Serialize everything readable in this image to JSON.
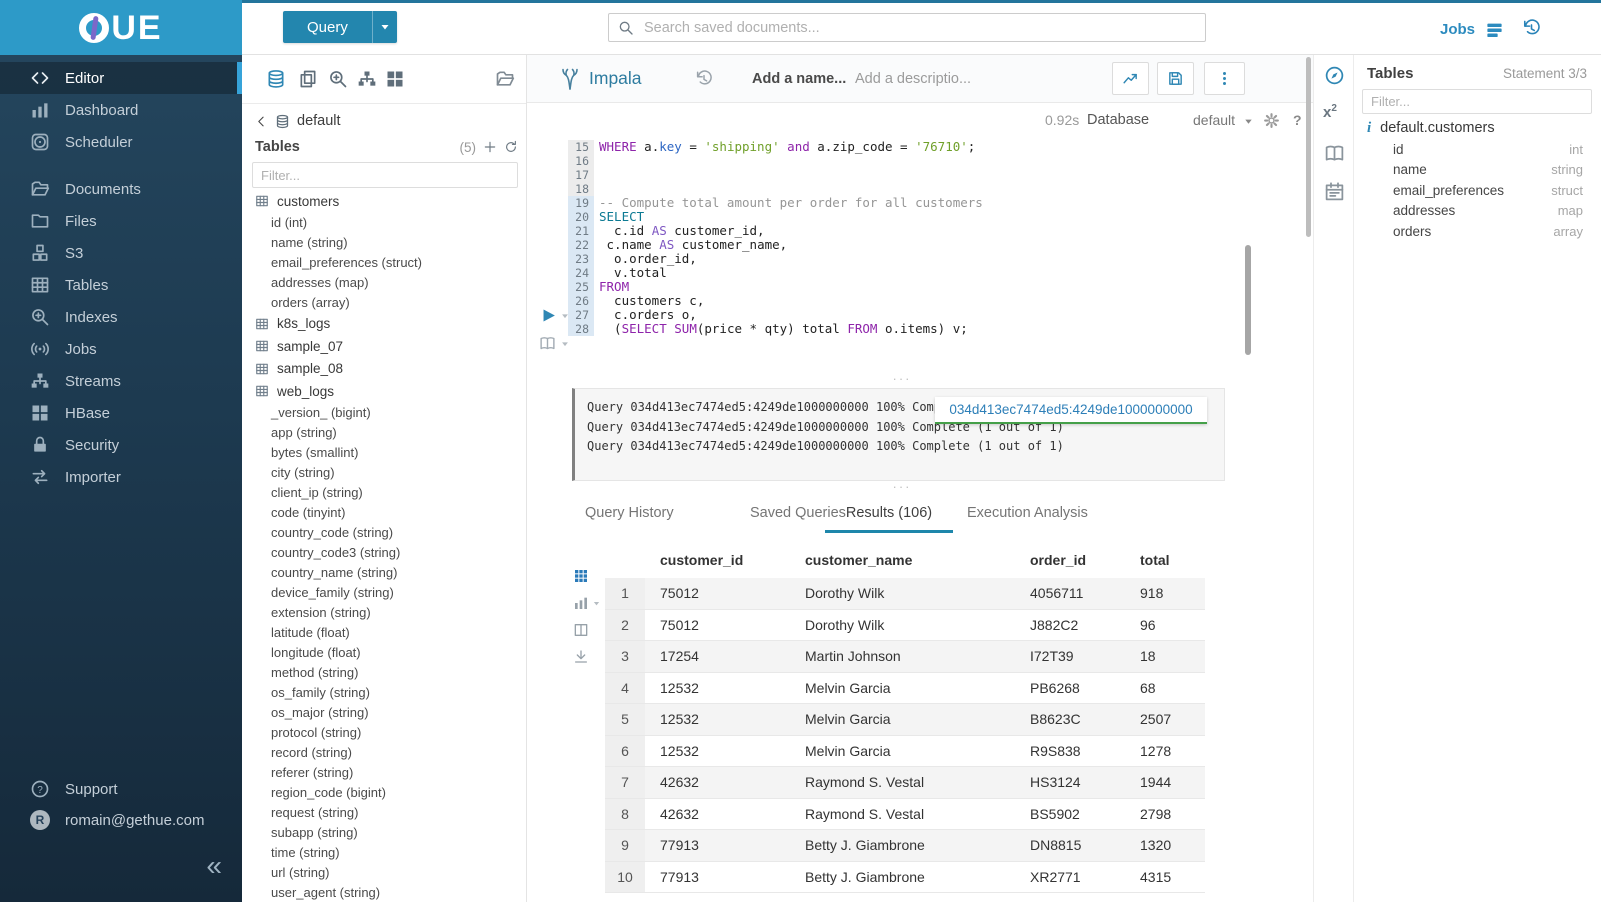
{
  "colors": {
    "accent_blue": "#2f87b4",
    "primary_button": "#2386ae",
    "logo_bar": "#2d9ac8",
    "sidebar_dark": "#1d3a50",
    "tab_active_underline": "#1e87ab",
    "tooltip_underline": "#45a049",
    "sql_keyword": "#8e24aa",
    "sql_string": "#70a02a"
  },
  "icons_legend": [
    "hue-logo-mark-icon",
    "caret-down-icon",
    "search-icon",
    "jobs-list-icon",
    "history-icon",
    "code-icon",
    "chart-bars-icon",
    "scheduler-icon",
    "folder-open-icon",
    "folder-icon",
    "cubes-icon",
    "table-icon",
    "search-plus-icon",
    "broadcast-icon",
    "sitemap-icon",
    "grid-icon",
    "lock-icon",
    "swap-icon",
    "question-icon",
    "database-icon",
    "copy-icon",
    "chevron-left-icon",
    "plus-icon",
    "refresh-icon",
    "impala-icon",
    "chart-line-icon",
    "save-icon",
    "kebab-icon",
    "gear-icon",
    "play-icon",
    "book-icon",
    "download-icon",
    "columns-icon",
    "grid-small-icon",
    "compass-icon",
    "superscript-icon",
    "calendar-icon",
    "info-icon",
    "collapse-icon"
  ],
  "topbar": {
    "query_button": "Query",
    "search_placeholder": "Search saved documents...",
    "jobs_label": "Jobs"
  },
  "sidebar": {
    "logo_brand": "HUE",
    "logo_letters": "UE",
    "items": [
      {
        "id": "editor",
        "label": "Editor",
        "icon": "code",
        "active": true
      },
      {
        "id": "dashboard",
        "label": "Dashboard",
        "icon": "chart-bars"
      },
      {
        "id": "scheduler",
        "label": "Scheduler",
        "icon": "scheduler",
        "gap_after": true
      },
      {
        "id": "documents",
        "label": "Documents",
        "icon": "folder-open"
      },
      {
        "id": "files",
        "label": "Files",
        "icon": "folder"
      },
      {
        "id": "s3",
        "label": "S3",
        "icon": "cubes"
      },
      {
        "id": "tables",
        "label": "Tables",
        "icon": "table"
      },
      {
        "id": "indexes",
        "label": "Indexes",
        "icon": "search-plus"
      },
      {
        "id": "jobs",
        "label": "Jobs",
        "icon": "broadcast"
      },
      {
        "id": "streams",
        "label": "Streams",
        "icon": "sitemap"
      },
      {
        "id": "hbase",
        "label": "HBase",
        "icon": "grid"
      },
      {
        "id": "security",
        "label": "Security",
        "icon": "lock"
      },
      {
        "id": "importer",
        "label": "Importer",
        "icon": "swap"
      }
    ],
    "support_label": "Support",
    "user_initial": "R",
    "user_email": "romain@gethue.com",
    "collapse_glyph": "«"
  },
  "left_assist": {
    "breadcrumb_db": "default",
    "tables_label": "Tables",
    "tables_count": "(5)",
    "filter_placeholder": "Filter...",
    "tree": [
      {
        "table": "customers",
        "columns": [
          "id (int)",
          "name (string)",
          "email_preferences (struct)",
          "addresses (map)",
          "orders (array)"
        ]
      },
      {
        "table": "k8s_logs",
        "columns": []
      },
      {
        "table": "sample_07",
        "columns": []
      },
      {
        "table": "sample_08",
        "columns": []
      },
      {
        "table": "web_logs",
        "columns": [
          "_version_ (bigint)",
          "app (string)",
          "bytes (smallint)",
          "city (string)",
          "client_ip (string)",
          "code (tinyint)",
          "country_code (string)",
          "country_code3 (string)",
          "country_name (string)",
          "device_family (string)",
          "extension (string)",
          "latitude (float)",
          "longitude (float)",
          "method (string)",
          "os_family (string)",
          "os_major (string)",
          "protocol (string)",
          "record (string)",
          "referer (string)",
          "region_code (bigint)",
          "request (string)",
          "subapp (string)",
          "time (string)",
          "url (string)",
          "user_agent (string)"
        ]
      }
    ]
  },
  "editor": {
    "engine": "Impala",
    "name_placeholder": "Add a name...",
    "description_placeholder": "Add a descriptio...",
    "exec_time": "0.92s",
    "database_label": "Database",
    "database_value": "default",
    "help_glyph": "?",
    "code": [
      {
        "n": 15,
        "hl": false,
        "tokens": [
          [
            "kw",
            "WHERE"
          ],
          [
            "pl",
            " a."
          ],
          [
            "res",
            "key"
          ],
          [
            "pl",
            " = "
          ],
          [
            "str",
            "'shipping'"
          ],
          [
            "pl",
            " "
          ],
          [
            "kw",
            "and"
          ],
          [
            "pl",
            " a.zip_code = "
          ],
          [
            "str",
            "'76710'"
          ],
          [
            "pl",
            ";"
          ]
        ]
      },
      {
        "n": 16,
        "hl": false,
        "tokens": []
      },
      {
        "n": 17,
        "hl": false,
        "tokens": []
      },
      {
        "n": 18,
        "hl": false,
        "tokens": []
      },
      {
        "n": 19,
        "hl": true,
        "tokens": [
          [
            "com",
            "-- Compute total amount per order for all customers"
          ]
        ]
      },
      {
        "n": 20,
        "hl": true,
        "tokens": [
          [
            "kw2",
            "SELECT"
          ]
        ]
      },
      {
        "n": 21,
        "hl": true,
        "tokens": [
          [
            "pl",
            "  c.id "
          ],
          [
            "kw3",
            "AS"
          ],
          [
            "pl",
            " customer_id,"
          ]
        ]
      },
      {
        "n": 22,
        "hl": true,
        "tokens": [
          [
            "pl",
            " c.name "
          ],
          [
            "kw3",
            "AS"
          ],
          [
            "pl",
            " customer_name,"
          ]
        ]
      },
      {
        "n": 23,
        "hl": true,
        "tokens": [
          [
            "pl",
            "  o.order_id,"
          ]
        ]
      },
      {
        "n": 24,
        "hl": true,
        "tokens": [
          [
            "pl",
            "  v.total"
          ]
        ]
      },
      {
        "n": 25,
        "hl": true,
        "tokens": [
          [
            "kw",
            "FROM"
          ]
        ]
      },
      {
        "n": 26,
        "hl": true,
        "tokens": [
          [
            "pl",
            "  customers c,"
          ]
        ]
      },
      {
        "n": 27,
        "hl": true,
        "tokens": [
          [
            "pl",
            "  c.orders o,"
          ]
        ]
      },
      {
        "n": 28,
        "hl": true,
        "tokens": [
          [
            "pl",
            "  ("
          ],
          [
            "kw",
            "SELECT"
          ],
          [
            "pl",
            " "
          ],
          [
            "kw",
            "SUM"
          ],
          [
            "pl",
            "(price * qty) total "
          ],
          [
            "kw",
            "FROM"
          ],
          [
            "pl",
            " o.items) v;"
          ]
        ]
      }
    ]
  },
  "log": {
    "lines": [
      "Query 034d413ec7474ed5:4249de1000000000 100% Complete (1 out of 1)",
      "Query 034d413ec7474ed5:4249de1000000000 100% Complete (1 out of 1)",
      "Query 034d413ec7474ed5:4249de1000000000 100% Complete (1 out of 1)"
    ],
    "tooltip": "034d413ec7474ed5:4249de1000000000"
  },
  "tabs": [
    {
      "label": "Query History",
      "active": false
    },
    {
      "label": "Saved Queries",
      "active": false
    },
    {
      "label": "Results (106)",
      "active": true
    },
    {
      "label": "Execution Analysis",
      "active": false
    }
  ],
  "results": {
    "columns": [
      "customer_id",
      "customer_name",
      "order_id",
      "total"
    ],
    "rows": [
      [
        "1",
        "75012",
        "Dorothy Wilk",
        "4056711",
        "918"
      ],
      [
        "2",
        "75012",
        "Dorothy Wilk",
        "J882C2",
        "96"
      ],
      [
        "3",
        "17254",
        "Martin Johnson",
        "I72T39",
        "18"
      ],
      [
        "4",
        "12532",
        "Melvin Garcia",
        "PB6268",
        "68"
      ],
      [
        "5",
        "12532",
        "Melvin Garcia",
        "B8623C",
        "2507"
      ],
      [
        "6",
        "12532",
        "Melvin Garcia",
        "R9S838",
        "1278"
      ],
      [
        "7",
        "42632",
        "Raymond S. Vestal",
        "HS3124",
        "1944"
      ],
      [
        "8",
        "42632",
        "Raymond S. Vestal",
        "BS5902",
        "2798"
      ],
      [
        "9",
        "77913",
        "Betty J. Giambrone",
        "DN8815",
        "1320"
      ],
      [
        "10",
        "77913",
        "Betty J. Giambrone",
        "XR2771",
        "4315"
      ]
    ]
  },
  "right_assist": {
    "title": "Tables",
    "statement": "Statement 3/3",
    "filter_placeholder": "Filter...",
    "table_ref": "default.customers",
    "info_glyph": "i",
    "columns": [
      {
        "name": "id",
        "type": "int"
      },
      {
        "name": "name",
        "type": "string"
      },
      {
        "name": "email_preferences",
        "type": "struct"
      },
      {
        "name": "addresses",
        "type": "map"
      },
      {
        "name": "orders",
        "type": "array"
      }
    ]
  }
}
